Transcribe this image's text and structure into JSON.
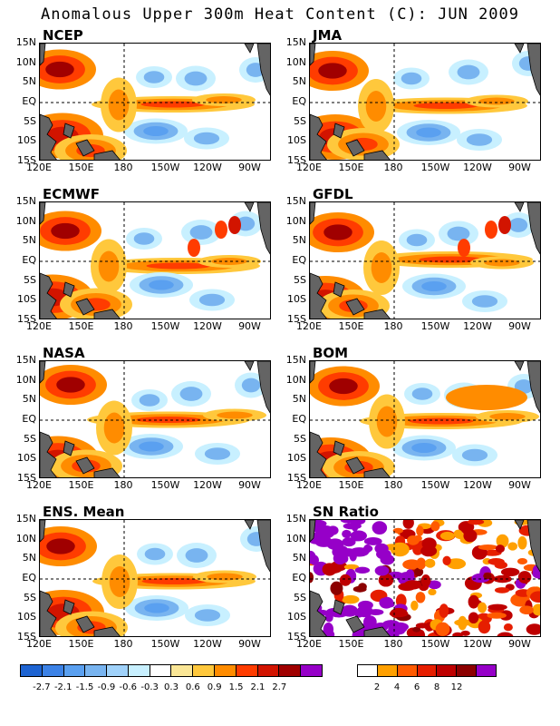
{
  "title": "Anomalous Upper 300m Heat Content (C): JUN 2009",
  "lat_labels": [
    "15N",
    "10N",
    "5N",
    "EQ",
    "5S",
    "10S",
    "15S"
  ],
  "lon_labels": [
    "120E",
    "150E",
    "180",
    "150W",
    "120W",
    "90W"
  ],
  "panels": [
    {
      "name": "NCEP",
      "kind": "anomaly"
    },
    {
      "name": "JMA",
      "kind": "anomaly"
    },
    {
      "name": "ECMWF",
      "kind": "anomaly"
    },
    {
      "name": "GFDL",
      "kind": "anomaly"
    },
    {
      "name": "NASA",
      "kind": "anomaly"
    },
    {
      "name": "BOM",
      "kind": "anomaly"
    },
    {
      "name": "ENS. Mean",
      "kind": "anomaly"
    },
    {
      "name": "SN Ratio",
      "kind": "ratio"
    }
  ],
  "anomaly_colorbar": {
    "colors": [
      "#1e64d2",
      "#3c82e6",
      "#5aa0f0",
      "#78b4f0",
      "#a0d2fa",
      "#c8f0ff",
      "#ffffff",
      "#fae696",
      "#ffc83c",
      "#ff8c00",
      "#ff3c00",
      "#d21400",
      "#a00000",
      "#9600c8"
    ],
    "labels": [
      "-2.7",
      "-2.1",
      "-1.5",
      "-0.9",
      "-0.6",
      "-0.3",
      "0.3",
      "0.6",
      "0.9",
      "1.5",
      "2.1",
      "2.7"
    ]
  },
  "ratio_colorbar": {
    "colors": [
      "#ffffff",
      "#ffa000",
      "#ff5a00",
      "#e61e00",
      "#be0000",
      "#8c0000",
      "#9600c8"
    ],
    "labels": [
      "2",
      "4",
      "6",
      "8",
      "12"
    ]
  },
  "land_color": "#646464"
}
